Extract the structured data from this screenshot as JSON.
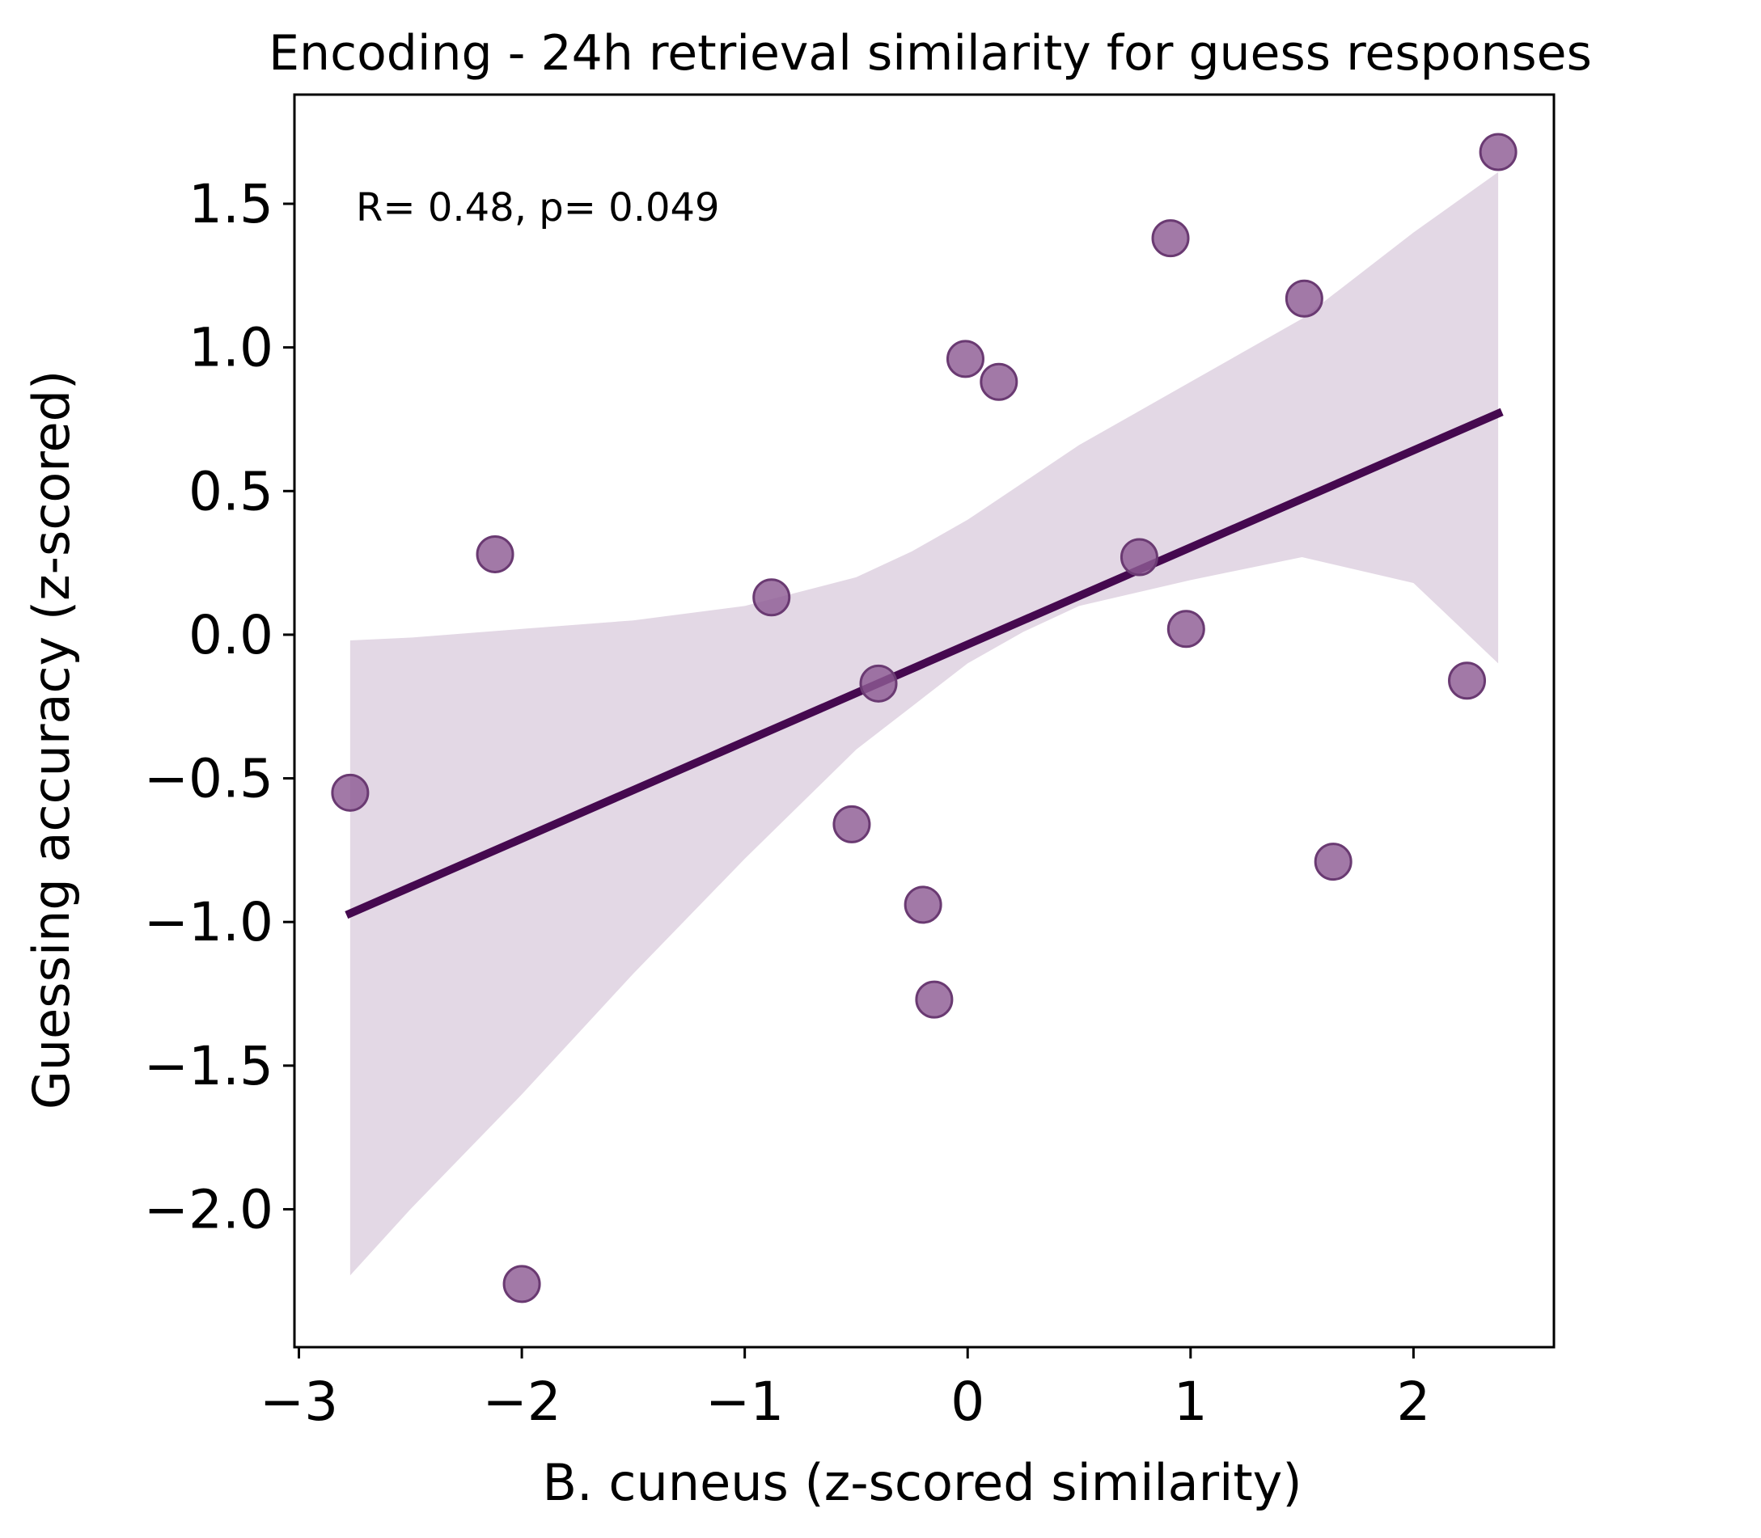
{
  "chart_data": {
    "type": "scatter",
    "title": "Encoding - 24h retrieval similarity for guess responses",
    "xlabel": "B. cuneus (z-scored similarity)",
    "ylabel": "Guessing accuracy (z-scored)",
    "annotation": "R= 0.48, p= 0.049",
    "xlim": [
      -3.02,
      2.63
    ],
    "ylim": [
      -2.48,
      1.88
    ],
    "x_ticks": [
      -3,
      -2,
      -1,
      0,
      1,
      2
    ],
    "x_tick_labels": [
      "−3",
      "−2",
      "−1",
      "0",
      "1",
      "2"
    ],
    "y_ticks": [
      1.5,
      1.0,
      0.5,
      0.0,
      -0.5,
      -1.0,
      -1.5,
      -2.0
    ],
    "y_tick_labels": [
      "1.5",
      "1.0",
      "0.5",
      "0.0",
      "−0.5",
      "−1.0",
      "−1.5",
      "−2.0"
    ],
    "grid": false,
    "series": [
      {
        "points": [
          {
            "x": -2.77,
            "y": -0.55
          },
          {
            "x": -2.12,
            "y": 0.28
          },
          {
            "x": -2.0,
            "y": -2.26
          },
          {
            "x": -0.88,
            "y": 0.13
          },
          {
            "x": -0.52,
            "y": -0.66
          },
          {
            "x": -0.4,
            "y": -0.17
          },
          {
            "x": -0.2,
            "y": -0.94
          },
          {
            "x": -0.15,
            "y": -1.27
          },
          {
            "x": -0.01,
            "y": 0.96
          },
          {
            "x": 0.14,
            "y": 0.88
          },
          {
            "x": 0.77,
            "y": 0.27
          },
          {
            "x": 0.91,
            "y": 1.38
          },
          {
            "x": 0.98,
            "y": 0.02
          },
          {
            "x": 1.51,
            "y": 1.17
          },
          {
            "x": 1.64,
            "y": -0.79
          },
          {
            "x": 2.24,
            "y": -0.16
          },
          {
            "x": 2.38,
            "y": 1.68
          }
        ]
      }
    ],
    "regression": {
      "x": [
        -2.77,
        2.38
      ],
      "y": [
        -0.97,
        0.77
      ]
    },
    "ci_band": {
      "x": [
        -2.77,
        -2.5,
        -2.0,
        -1.5,
        -1.0,
        -0.5,
        -0.25,
        0.0,
        0.25,
        0.5,
        1.0,
        1.5,
        2.0,
        2.38
      ],
      "upper": [
        -0.02,
        -0.01,
        0.02,
        0.05,
        0.1,
        0.2,
        0.29,
        0.4,
        0.53,
        0.66,
        0.88,
        1.1,
        1.4,
        1.61
      ],
      "lower": [
        -2.23,
        -2.0,
        -1.6,
        -1.18,
        -0.78,
        -0.4,
        -0.25,
        -0.1,
        0.01,
        0.1,
        0.19,
        0.27,
        0.18,
        -0.1
      ]
    },
    "colors": {
      "points_fill": "#8e5b94",
      "points_edge": "#6a3a72",
      "line": "#45094f",
      "band": "#e3d8e5",
      "axes": "#000000"
    }
  }
}
